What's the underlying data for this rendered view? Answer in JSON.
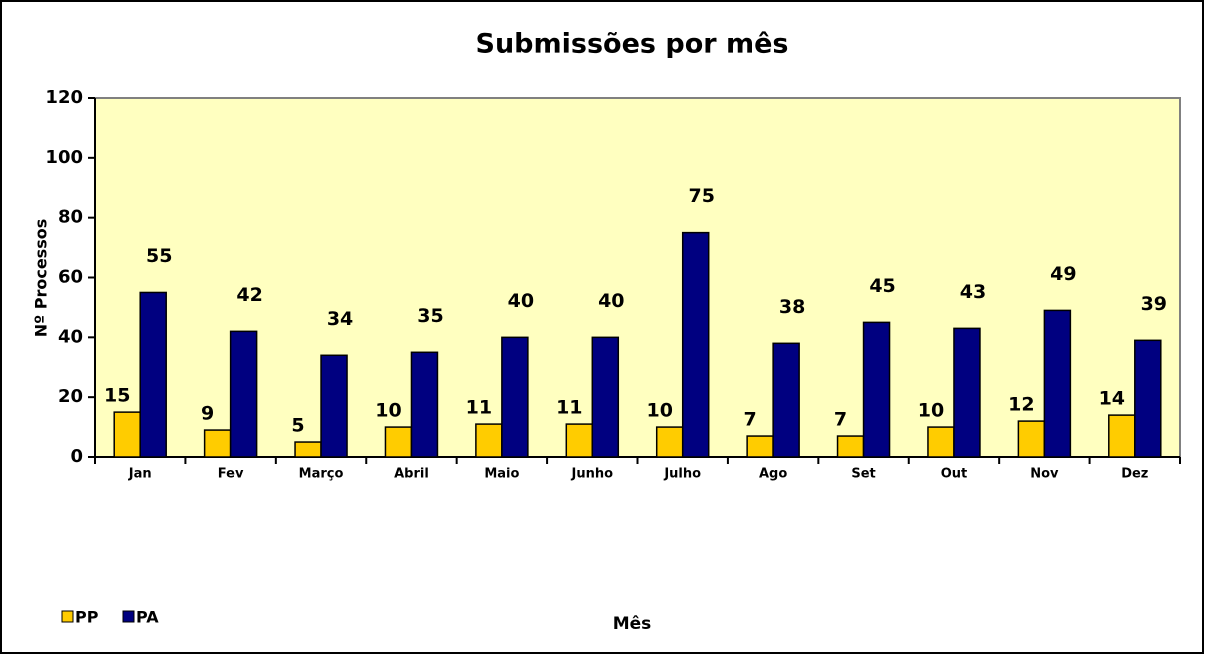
{
  "chart_data": {
    "type": "bar",
    "title": "Submissões por mês",
    "x_label": "Mês",
    "y_label": "Nº Processos",
    "categories": [
      "Jan",
      "Fev",
      "Março",
      "Abril",
      "Maio",
      "Junho",
      "Julho",
      "Ago",
      "Set",
      "Out",
      "Nov",
      "Dez"
    ],
    "series": [
      {
        "name": "PP",
        "color": "#ffcc00",
        "values": [
          15,
          9,
          5,
          10,
          11,
          11,
          10,
          7,
          7,
          10,
          12,
          14
        ]
      },
      {
        "name": "PA",
        "color": "#000080",
        "values": [
          55,
          42,
          34,
          35,
          40,
          40,
          75,
          38,
          45,
          43,
          49,
          39
        ]
      }
    ],
    "ylim": [
      0,
      120
    ],
    "yticks": [
      0,
      20,
      40,
      60,
      80,
      100,
      120
    ],
    "grid": false,
    "legend": "bottom-left",
    "plot_background": "#ffffc0"
  }
}
